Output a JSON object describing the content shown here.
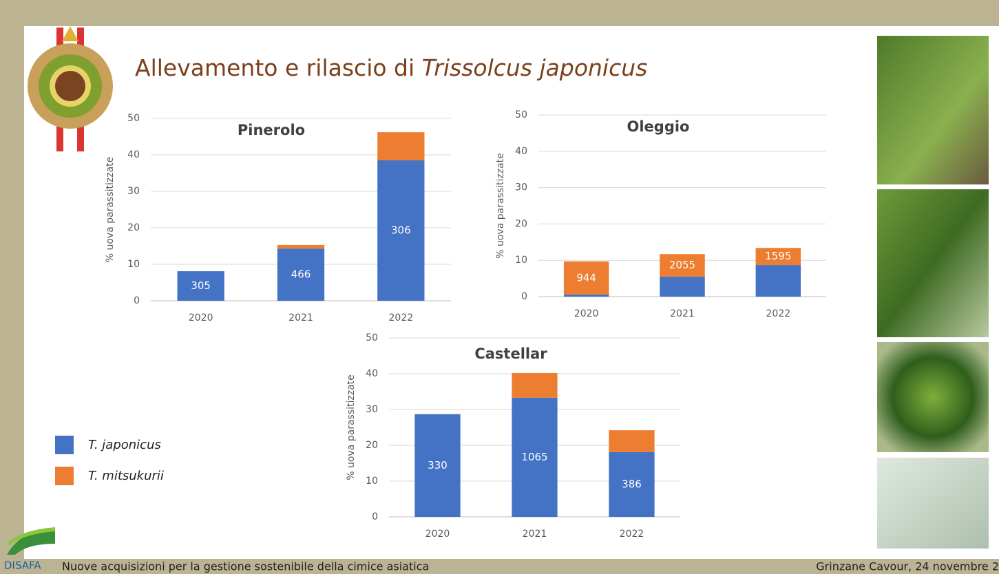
{
  "title": "Allevamento e rilascio di",
  "title_species": "Trissolcus japonicus",
  "logo_text": "DISAFA",
  "footer_left": "Nuove acquisizioni per la gestione sostenibile della cimice asiatica",
  "footer_right": "Grinzane Cavour, 24 novembre 2",
  "legend": {
    "items": [
      {
        "name": "T. japonicus",
        "color": "#4472c4"
      },
      {
        "name": "T. mitsukurii",
        "color": "#ed7d31"
      }
    ]
  },
  "chart_data": [
    {
      "type": "stacked-bar",
      "title": "Pinerolo",
      "ylabel": "% uova parassitizzate",
      "categories": [
        "2020",
        "2021",
        "2022"
      ],
      "series": [
        {
          "values": [
            8.1,
            14.3,
            38.5
          ],
          "labels": [
            305,
            466,
            306
          ]
        },
        {
          "values": [
            0,
            1.0,
            7.7
          ]
        }
      ],
      "ylim": [
        0,
        50
      ],
      "yticks": [
        0,
        10,
        20,
        30,
        40,
        50
      ],
      "grid": true
    },
    {
      "type": "stacked-bar",
      "title": "Oleggio",
      "ylabel": "% uova parassitizzate",
      "categories": [
        "2020",
        "2021",
        "2022"
      ],
      "series": [
        {
          "values": [
            0.6,
            5.5,
            8.7
          ]
        },
        {
          "values": [
            9.1,
            6.2,
            4.7
          ],
          "labels": [
            944,
            2055,
            1595
          ]
        }
      ],
      "ylim": [
        0,
        50
      ],
      "yticks": [
        0,
        10,
        20,
        30,
        40,
        50
      ],
      "grid": true
    },
    {
      "type": "stacked-bar",
      "title": "Castellar",
      "ylabel": "% uova parassitizzate",
      "categories": [
        "2020",
        "2021",
        "2022"
      ],
      "series": [
        {
          "values": [
            28.7,
            33.3,
            18.1
          ],
          "labels": [
            330,
            1065,
            386
          ]
        },
        {
          "values": [
            0,
            6.9,
            6.1
          ]
        }
      ],
      "ylim": [
        0,
        50
      ],
      "yticks": [
        0,
        10,
        20,
        30,
        40,
        50
      ],
      "grid": true
    }
  ]
}
